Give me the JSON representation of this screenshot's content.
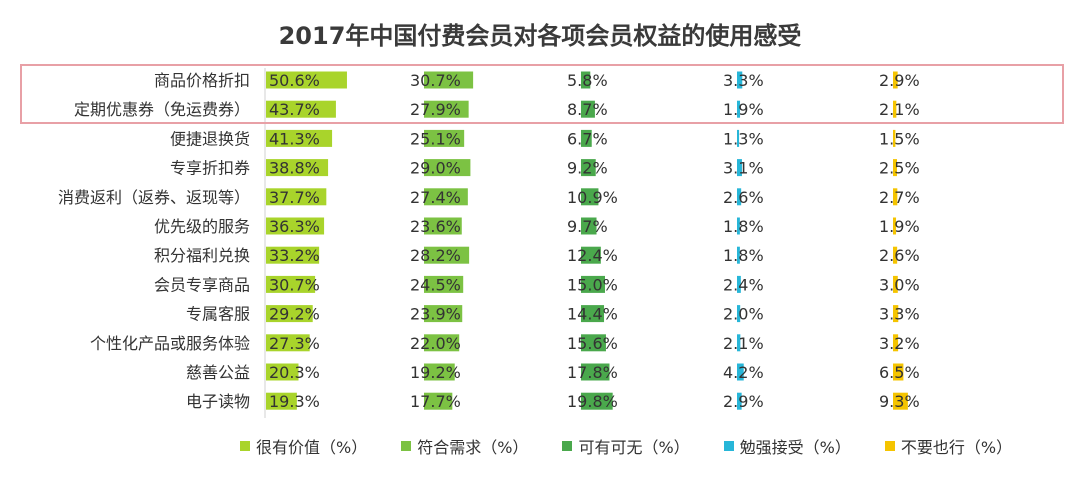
{
  "chart_data": {
    "type": "bar",
    "title": "2017年中国付费会员对各项会员权益的使用感受",
    "categories": [
      "商品价格折扣",
      "定期优惠券（免运费券）",
      "便捷退换货",
      "专享折扣券",
      "消费返利（返券、返现等）",
      "优先级的服务",
      "积分福利兑换",
      "会员专享商品",
      "专属客服",
      "个性化产品或服务体验",
      "慈善公益",
      "电子读物"
    ],
    "highlighted_categories": [
      "商品价格折扣",
      "定期优惠券（免运费券）"
    ],
    "series": [
      {
        "name": "很有价值（%）",
        "color": "#a9d42b",
        "values": [
          50.6,
          43.7,
          41.3,
          38.8,
          37.7,
          36.3,
          33.2,
          30.7,
          29.2,
          27.3,
          20.3,
          19.3
        ]
      },
      {
        "name": "符合需求（%）",
        "color": "#7cc243",
        "values": [
          30.7,
          27.9,
          25.1,
          29.0,
          27.4,
          23.6,
          28.2,
          24.5,
          23.9,
          22.0,
          19.2,
          17.7
        ]
      },
      {
        "name": "可有可无（%）",
        "color": "#4aa84c",
        "values": [
          5.8,
          8.7,
          6.7,
          9.2,
          10.9,
          9.7,
          12.4,
          15.0,
          14.4,
          15.6,
          17.8,
          19.8
        ]
      },
      {
        "name": "勉强接受（%）",
        "color": "#27b6d8",
        "values": [
          3.3,
          1.9,
          1.3,
          3.1,
          2.6,
          1.8,
          1.8,
          2.4,
          2.0,
          2.1,
          4.2,
          2.9
        ]
      },
      {
        "name": "不要也行（%）",
        "color": "#f5c400",
        "values": [
          2.9,
          2.1,
          1.5,
          2.5,
          2.7,
          1.9,
          2.6,
          3.0,
          3.3,
          3.2,
          6.5,
          9.3
        ]
      }
    ],
    "value_suffix": "%",
    "legend_position": "bottom"
  }
}
